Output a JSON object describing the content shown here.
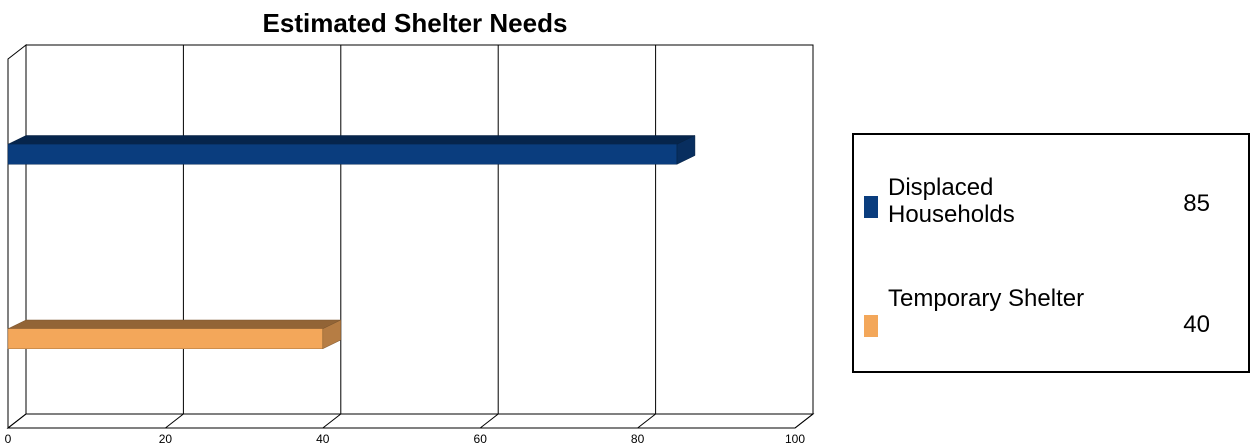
{
  "chart_data": {
    "type": "bar",
    "orientation": "horizontal",
    "title": "Estimated Shelter Needs",
    "categories": [
      "Displaced Households",
      "Temporary Shelter"
    ],
    "values": [
      85,
      40
    ],
    "colors": [
      "#0a3d7e",
      "#f3a75a"
    ],
    "xlim": [
      0,
      100
    ],
    "x_ticks": [
      "0",
      "20",
      "40",
      "60",
      "80",
      "100"
    ],
    "grid": true,
    "legend_position": "right",
    "legend": [
      {
        "label": "Displaced Households",
        "value": "85",
        "color": "#0a3d7e"
      },
      {
        "label": "Temporary Shelter",
        "value": "40",
        "color": "#f3a75a"
      }
    ]
  }
}
